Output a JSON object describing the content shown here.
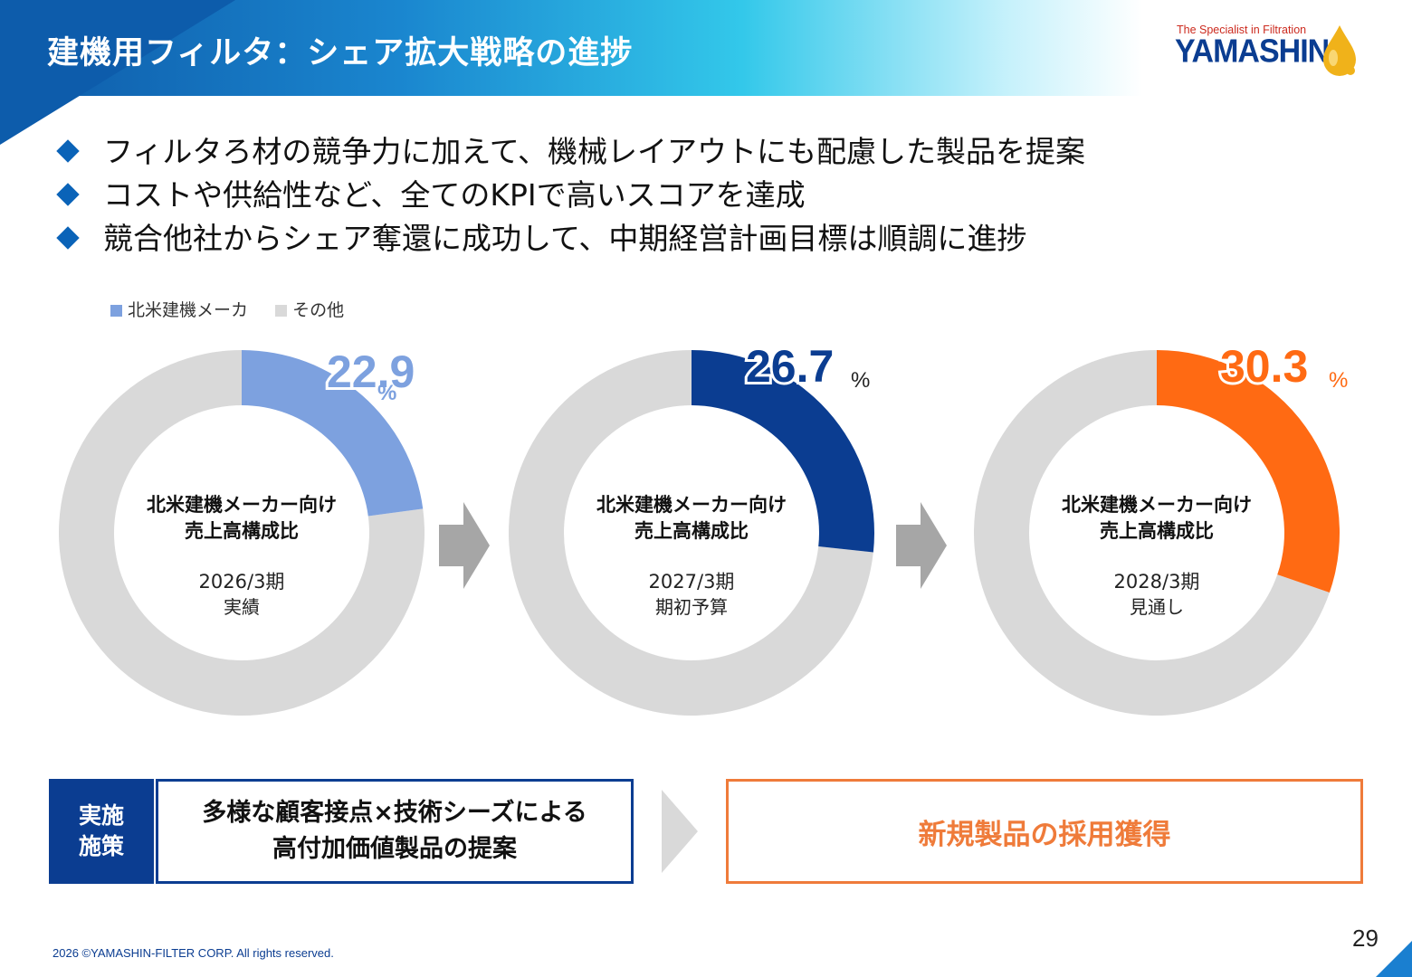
{
  "header": {
    "title": "建機用フィルタ：シェア拡大戦略の進捗"
  },
  "logo": {
    "tagline": "The Specialist in Filtration",
    "wordmark": "YAMASHIN"
  },
  "bullets": [
    "フィルタろ材の競争力に加えて、機械レイアウトにも配慮した製品を提案",
    "コストや供給性など、全てのKPIで高いスコアを達成",
    "競合他社からシェア奪還に成功して、中期経営計画目標は順調に進捗"
  ],
  "legend": [
    {
      "label": "北米建機メーカ",
      "color": "#7da1df"
    },
    {
      "label": "その他",
      "color": "#d9d9d9"
    }
  ],
  "chart_data": {
    "type": "pie",
    "variant": "donut",
    "unit": "%",
    "series_names": [
      "北米建機メーカ",
      "その他"
    ],
    "charts": [
      {
        "period": "2026/3期",
        "status": "実績",
        "value": 22.9,
        "other": 77.1,
        "color": "#7da1df",
        "center_title": [
          "北米建機メーカー向け",
          "売上高構成比"
        ]
      },
      {
        "period": "2027/3期",
        "status": "期初予算",
        "value": 26.7,
        "other": 73.3,
        "color": "#0b3d91",
        "center_title": [
          "北米建機メーカー向け",
          "売上高構成比"
        ]
      },
      {
        "period": "2028/3期",
        "status": "見通し",
        "value": 30.3,
        "other": 69.7,
        "color": "#ff6a13",
        "center_title": [
          "北米建機メーカー向け",
          "売上高構成比"
        ]
      }
    ],
    "other_color": "#d9d9d9"
  },
  "bottom": {
    "label": [
      "実施",
      "施策"
    ],
    "action": [
      "多様な顧客接点×技術シーズによる",
      "高付加価値製品の提案"
    ],
    "result": "新規製品の採用獲得"
  },
  "footer": {
    "copyright": "2026 ©YAMASHIN-FILTER CORP. All rights reserved.",
    "page_number": "29"
  },
  "colors": {
    "brand_navy": "#0b3d91",
    "accent_orange": "#ef7b3a",
    "arrow_gray": "#a6a6a6"
  }
}
